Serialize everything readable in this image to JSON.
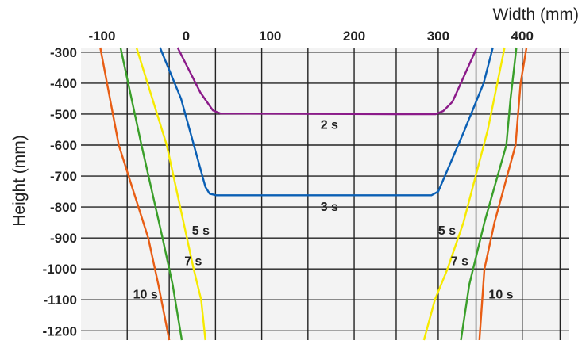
{
  "chart_data": {
    "type": "line",
    "xlabel": "Width (mm)",
    "ylabel": "Height (mm)",
    "xlim": [
      -125,
      455
    ],
    "ylim": [
      -1230,
      -285
    ],
    "x_ticks": [
      -100,
      0,
      100,
      200,
      300,
      400
    ],
    "x_tick_labels": [
      "-100",
      "0",
      "100",
      "200",
      "300",
      "400"
    ],
    "y_ticks": [
      -300,
      -400,
      -500,
      -600,
      -700,
      -800,
      -900,
      -1000,
      -1100,
      -1200
    ],
    "y_tick_labels": [
      "-300",
      "-400",
      "-500",
      "-600",
      "-700",
      "-800",
      "-900",
      "-1000",
      "-1100",
      "-1200"
    ],
    "x_gridlines": [
      -70,
      -20,
      35,
      90,
      145,
      200,
      250,
      300,
      345,
      400,
      445
    ],
    "y_gridlines": [
      -300,
      -400,
      -500,
      -600,
      -700,
      -800,
      -900,
      -1000,
      -1100,
      -1200
    ],
    "grid": true,
    "series": [
      {
        "name": "2 s",
        "color": "#8b1a89",
        "segments": [
          [
            [
              -10,
              -285
            ],
            [
              17,
              -430
            ],
            [
              32,
              -488
            ],
            [
              41,
              -498
            ],
            [
              250,
              -500
            ],
            [
              297,
              -500
            ],
            [
              306,
              -490
            ],
            [
              317,
              -460
            ],
            [
              346,
              -285
            ]
          ]
        ]
      },
      {
        "name": "3 s",
        "color": "#0a5fb4",
        "segments": [
          [
            [
              -31,
              -285
            ],
            [
              -6,
              -450
            ],
            [
              23,
              -735
            ],
            [
              28,
              -757
            ],
            [
              36,
              -762
            ],
            [
              250,
              -762
            ],
            [
              292,
              -762
            ],
            [
              300,
              -750
            ],
            [
              330,
              -560
            ],
            [
              354,
              -400
            ],
            [
              365,
              -285
            ]
          ]
        ]
      },
      {
        "name": "5 s",
        "color": "#f6ea00",
        "segments": [
          [
            [
              -59,
              -285
            ],
            [
              -23,
              -600
            ],
            [
              -3,
              -850
            ],
            [
              9,
              -1000
            ],
            [
              18,
              -1100
            ],
            [
              23,
              -1230
            ]
          ],
          [
            [
              379,
              -285
            ],
            [
              359,
              -550
            ],
            [
              330,
              -850
            ],
            [
              311,
              -1000
            ],
            [
              296,
              -1100
            ],
            [
              283,
              -1230
            ]
          ]
        ]
      },
      {
        "name": "7 s",
        "color": "#3a9f2a",
        "segments": [
          [
            [
              -78,
              -285
            ],
            [
              -53,
              -600
            ],
            [
              -28,
              -900
            ],
            [
              -16,
              -1050
            ],
            [
              -5,
              -1230
            ]
          ],
          [
            [
              393,
              -285
            ],
            [
              386,
              -450
            ],
            [
              381,
              -600
            ],
            [
              355,
              -850
            ],
            [
              337,
              -1050
            ],
            [
              327,
              -1230
            ]
          ]
        ]
      },
      {
        "name": "10 s",
        "color": "#e85d14",
        "segments": [
          [
            [
              -102,
              -285
            ],
            [
              -80,
              -600
            ],
            [
              -45,
              -900
            ],
            [
              -33,
              -1050
            ],
            [
              -20,
              -1230
            ]
          ],
          [
            [
              405,
              -285
            ],
            [
              398,
              -400
            ],
            [
              392,
              -600
            ],
            [
              367,
              -850
            ],
            [
              355,
              -1000
            ],
            [
              349,
              -1230
            ]
          ]
        ]
      }
    ],
    "annotations": [
      {
        "text": "2 s",
        "x": 160,
        "y": -548
      },
      {
        "text": "3 s",
        "x": 160,
        "y": -813
      },
      {
        "text": "5 s",
        "x": 7,
        "y": -890
      },
      {
        "text": "5 s",
        "x": 300,
        "y": -890
      },
      {
        "text": "7 s",
        "x": -2,
        "y": -988
      },
      {
        "text": "7 s",
        "x": 315,
        "y": -988
      },
      {
        "text": "10 s",
        "x": -63,
        "y": -1095
      },
      {
        "text": "10 s",
        "x": 360,
        "y": -1095
      }
    ]
  }
}
